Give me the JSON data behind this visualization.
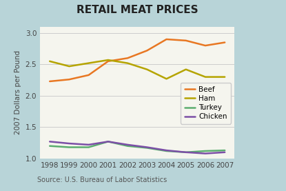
{
  "title": "RETAIL MEAT PRICES",
  "ylabel": "2007 Dollars per Pound",
  "source": "Source: U.S. Bureau of Labor Statistics",
  "years": [
    1998,
    1999,
    2000,
    2001,
    2002,
    2003,
    2004,
    2005,
    2006,
    2007
  ],
  "beef": [
    2.23,
    2.26,
    2.33,
    2.55,
    2.6,
    2.72,
    2.9,
    2.88,
    2.8,
    2.85
  ],
  "ham": [
    2.55,
    2.47,
    2.52,
    2.57,
    2.52,
    2.42,
    2.27,
    2.42,
    2.3,
    2.3
  ],
  "turkey": [
    1.2,
    1.18,
    1.18,
    1.27,
    1.2,
    1.17,
    1.12,
    1.1,
    1.12,
    1.13
  ],
  "chicken": [
    1.27,
    1.24,
    1.22,
    1.27,
    1.22,
    1.18,
    1.13,
    1.1,
    1.08,
    1.1
  ],
  "beef_color": "#E87722",
  "ham_color": "#B5A400",
  "turkey_color": "#5BAD6F",
  "chicken_color": "#7B4FA6",
  "bg_color": "#B8D4D8",
  "plot_bg_color": "#F5F5EE",
  "grid_color": "#CCCCCC",
  "ylim": [
    1.0,
    3.1
  ],
  "yticks": [
    1.0,
    1.5,
    2.0,
    2.5,
    3.0
  ],
  "title_fontsize": 11,
  "label_fontsize": 7.5,
  "tick_fontsize": 7.5,
  "source_fontsize": 7,
  "legend_fontsize": 7.5,
  "line_width": 1.8
}
